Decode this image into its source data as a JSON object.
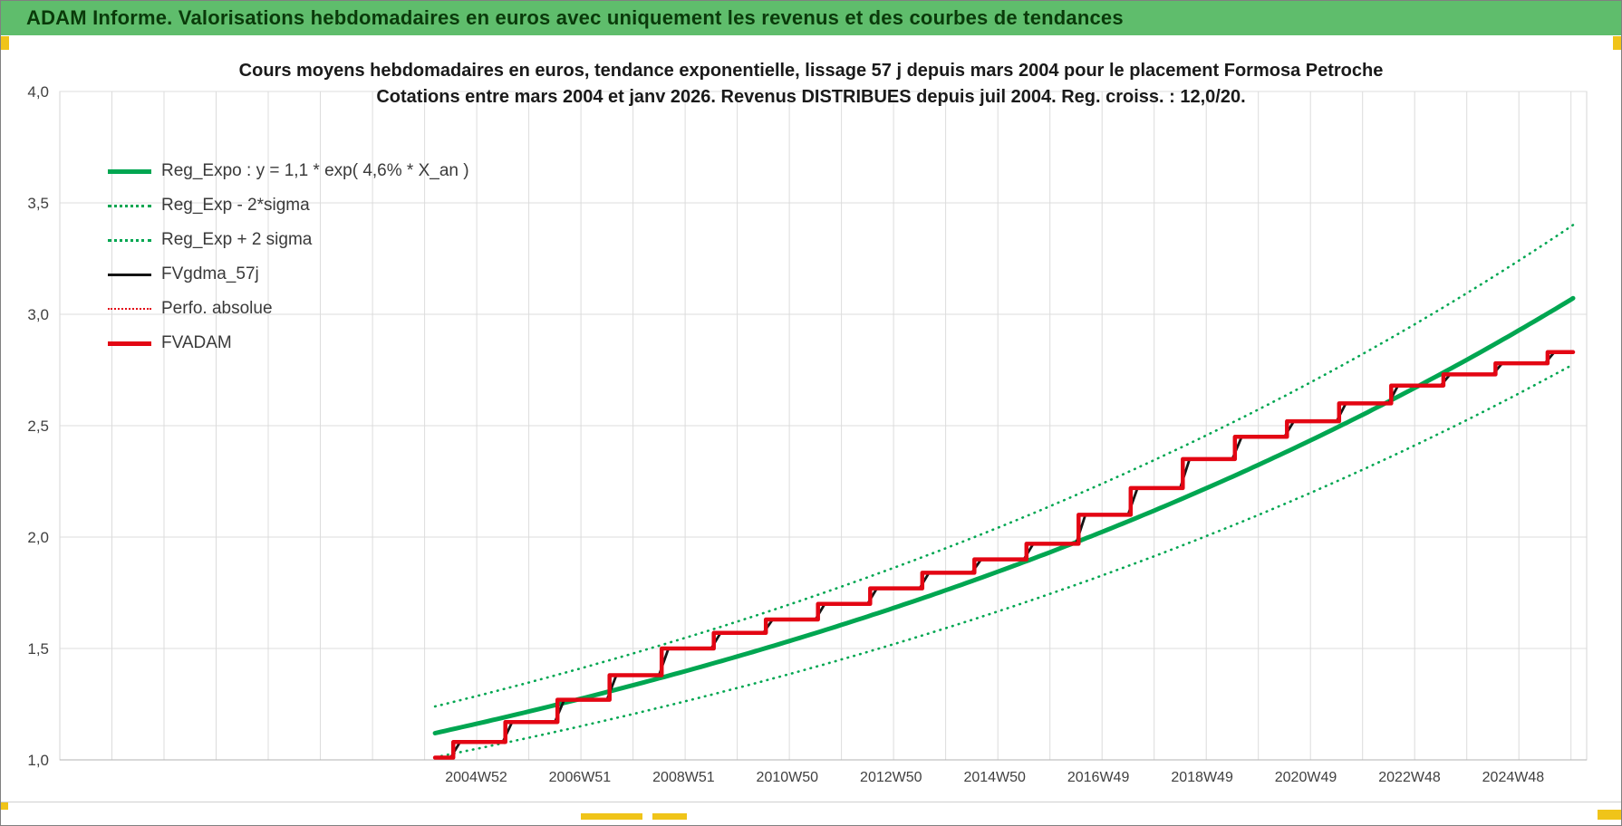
{
  "header": {
    "title": "ADAM Informe. Valorisations hebdomadaires en euros avec uniquement les revenus et des courbes de tendances",
    "background_color": "#5FBD6C",
    "text_color": "#0A3A0A"
  },
  "accent_color": "#F0C419",
  "chart_data": {
    "type": "line",
    "title": "Cours moyens hebdomadaires en euros, tendance exponentielle, lissage 57 j depuis mars 2004 pour le placement Formosa Petroche",
    "subtitle": "Cotations entre mars 2004 et janv 2026. Revenus DISTRIBUES depuis juil 2004. Reg. croiss. : 12,0/20.",
    "ylim": [
      1.0,
      4.0
    ],
    "yticks": [
      {
        "value": 1.0,
        "label": "1,0"
      },
      {
        "value": 1.5,
        "label": "1,5"
      },
      {
        "value": 2.0,
        "label": "2,0"
      },
      {
        "value": 2.5,
        "label": "2,5"
      },
      {
        "value": 3.0,
        "label": "3,0"
      },
      {
        "value": 3.5,
        "label": "3,5"
      },
      {
        "value": 4.0,
        "label": "4,0"
      }
    ],
    "grid": {
      "color": "#DCDCDC",
      "show": true
    },
    "x_axis": {
      "min_year": 1997.0,
      "max_year": 2026.3,
      "gridline_step_years": 1,
      "ticks": [
        {
          "year": 2004.99,
          "label": "2004W52"
        },
        {
          "year": 2006.98,
          "label": "2006W51"
        },
        {
          "year": 2008.97,
          "label": "2008W51"
        },
        {
          "year": 2010.96,
          "label": "2010W50"
        },
        {
          "year": 2012.95,
          "label": "2012W50"
        },
        {
          "year": 2014.94,
          "label": "2014W50"
        },
        {
          "year": 2016.93,
          "label": "2016W49"
        },
        {
          "year": 2018.92,
          "label": "2018W49"
        },
        {
          "year": 2020.91,
          "label": "2020W49"
        },
        {
          "year": 2022.9,
          "label": "2022W48"
        },
        {
          "year": 2024.89,
          "label": "2024W48"
        }
      ]
    },
    "data_start_year": 2004.2,
    "data_end_year": 2026.04,
    "steps": {
      "start_value": 1.01,
      "first_jump_year": 2004.55,
      "jump_interval_years": 1,
      "levels": [
        1.08,
        1.17,
        1.27,
        1.38,
        1.5,
        1.57,
        1.63,
        1.7,
        1.77,
        1.84,
        1.9,
        1.97,
        2.1,
        2.22,
        2.35,
        2.45,
        2.52,
        2.6,
        2.68,
        2.73,
        2.78,
        2.83
      ]
    },
    "series": [
      {
        "id": "reg-expo",
        "name": "Reg_Expo : y = 1,1 * exp( 4,6% *  X_an )",
        "kind": "exp",
        "a": 1.12,
        "rate": 0.0462,
        "color": "#00A651",
        "width": 5,
        "dash": ""
      },
      {
        "id": "reg-exp-minus-2sigma",
        "name": "Reg_Exp - 2*sigma",
        "kind": "exp",
        "a": 1.0117,
        "rate": 0.0462,
        "color": "#00A651",
        "width": 2.6,
        "dash": "0.6 6.5"
      },
      {
        "id": "reg-exp-plus-2sigma",
        "name": "Reg_Exp + 2 sigma",
        "kind": "exp",
        "a": 1.2398,
        "rate": 0.0462,
        "color": "#00A651",
        "width": 2.6,
        "dash": "0.6 6.5"
      },
      {
        "id": "fvgdma-57j",
        "name": "FVgdma_57j",
        "kind": "steps_smooth",
        "color": "#141414",
        "width": 2.8,
        "dash": ""
      },
      {
        "id": "perfo-absolue",
        "name": "Perfo. absolue",
        "kind": "steps",
        "color": "#E30613",
        "width": 2,
        "dash": "1.5 4.5"
      },
      {
        "id": "fvadam",
        "name": "FVADAM",
        "kind": "steps",
        "color": "#E30613",
        "width": 4.5,
        "dash": ""
      }
    ],
    "legend_position": "top-left"
  }
}
